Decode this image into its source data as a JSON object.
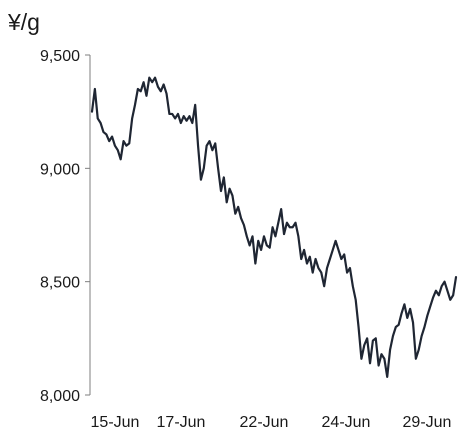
{
  "chart_data": {
    "type": "line",
    "title": "",
    "unit_label": "¥/g",
    "xlabel": "",
    "ylabel": "",
    "ylim": [
      8000,
      9500
    ],
    "y_ticks": [
      8000,
      8500,
      9000,
      9500
    ],
    "y_tick_labels": [
      "8,000",
      "8,500",
      "9,000",
      "9,500"
    ],
    "x_tick_labels": [
      "15-Jun",
      "17-Jun",
      "22-Jun",
      "24-Jun",
      "29-Jun"
    ],
    "grid": false,
    "legend": "none",
    "line_color": "#1f2633",
    "series": [
      {
        "values": [
          9250,
          9350,
          9220,
          9200,
          9160,
          9150,
          9120,
          9140,
          9100,
          9080,
          9040,
          9120,
          9100,
          9110,
          9220,
          9280,
          9350,
          9340,
          9380,
          9320,
          9400,
          9380,
          9400,
          9360,
          9340,
          9370,
          9330,
          9240,
          9240,
          9220,
          9240,
          9200,
          9230,
          9210,
          9230,
          9200,
          9280,
          9100,
          8950,
          9000,
          9100,
          9120,
          9080,
          9110,
          9000,
          8900,
          8960,
          8850,
          8910,
          8880,
          8800,
          8830,
          8780,
          8750,
          8700,
          8660,
          8700,
          8580,
          8680,
          8640,
          8700,
          8660,
          8650,
          8740,
          8700,
          8760,
          8820,
          8710,
          8760,
          8740,
          8740,
          8760,
          8700,
          8600,
          8640,
          8580,
          8610,
          8540,
          8600,
          8560,
          8540,
          8480,
          8560,
          8600,
          8640,
          8680,
          8640,
          8600,
          8620,
          8540,
          8560,
          8480,
          8420,
          8300,
          8160,
          8220,
          8250,
          8140,
          8240,
          8250,
          8130,
          8180,
          8160,
          8080,
          8200,
          8260,
          8300,
          8310,
          8360,
          8400,
          8340,
          8380,
          8320,
          8160,
          8200,
          8260,
          8300,
          8350,
          8390,
          8430,
          8460,
          8440,
          8480,
          8500,
          8460,
          8420,
          8440,
          8520
        ]
      }
    ]
  }
}
